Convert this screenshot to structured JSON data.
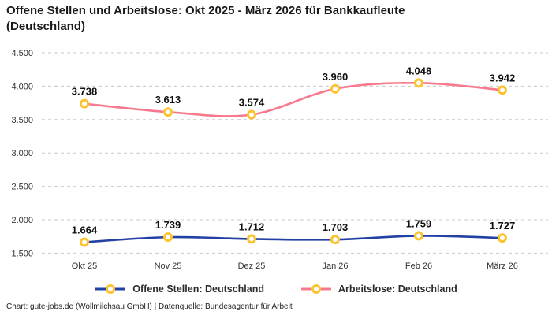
{
  "title": "Offene Stellen und Arbeitslose: Okt 2025 - März 2026 für Bankkaufleute (Deutschland)",
  "footer": "Chart: gute-jobs.de (Wollmilchsau GmbH) | Datenquelle: Bundesagentur für Arbeit",
  "colors": {
    "series_open_positions": "#2341a4",
    "series_unemployed": "#f8798d",
    "marker_ring": "#fcc330",
    "marker_fill": "#ffffff",
    "gridline": "#c9c9c9",
    "tick_text": "#333333",
    "data_label_text": "#111111"
  },
  "chart_data": {
    "type": "line",
    "categories": [
      "Okt 25",
      "Nov 25",
      "Dez 25",
      "Jan 26",
      "Feb 26",
      "März 26"
    ],
    "series": [
      {
        "name": "Offene Stellen: Deutschland",
        "color": "#2341a4",
        "values": [
          1664,
          1739,
          1712,
          1703,
          1759,
          1727
        ],
        "labels": [
          "1.664",
          "1.739",
          "1.712",
          "1.703",
          "1.759",
          "1.727"
        ]
      },
      {
        "name": "Arbeitslose: Deutschland",
        "color": "#f8798d",
        "values": [
          3738,
          3613,
          3574,
          3960,
          4048,
          3942
        ],
        "labels": [
          "3.738",
          "3.613",
          "3.574",
          "3.960",
          "4.048",
          "3.942"
        ]
      }
    ],
    "y_ticks": [
      {
        "value": 1500,
        "label": "1.500"
      },
      {
        "value": 2000,
        "label": "2.000"
      },
      {
        "value": 2500,
        "label": "2.500"
      },
      {
        "value": 3000,
        "label": "3.000"
      },
      {
        "value": 3500,
        "label": "3.500"
      },
      {
        "value": 4000,
        "label": "4.000"
      },
      {
        "value": 4500,
        "label": "4.500"
      }
    ],
    "ylim": [
      1500,
      4500
    ],
    "grid": "horizontal-dashed",
    "legend_position": "bottom",
    "marker": {
      "ring": "#fcc330",
      "fill": "#ffffff"
    }
  }
}
